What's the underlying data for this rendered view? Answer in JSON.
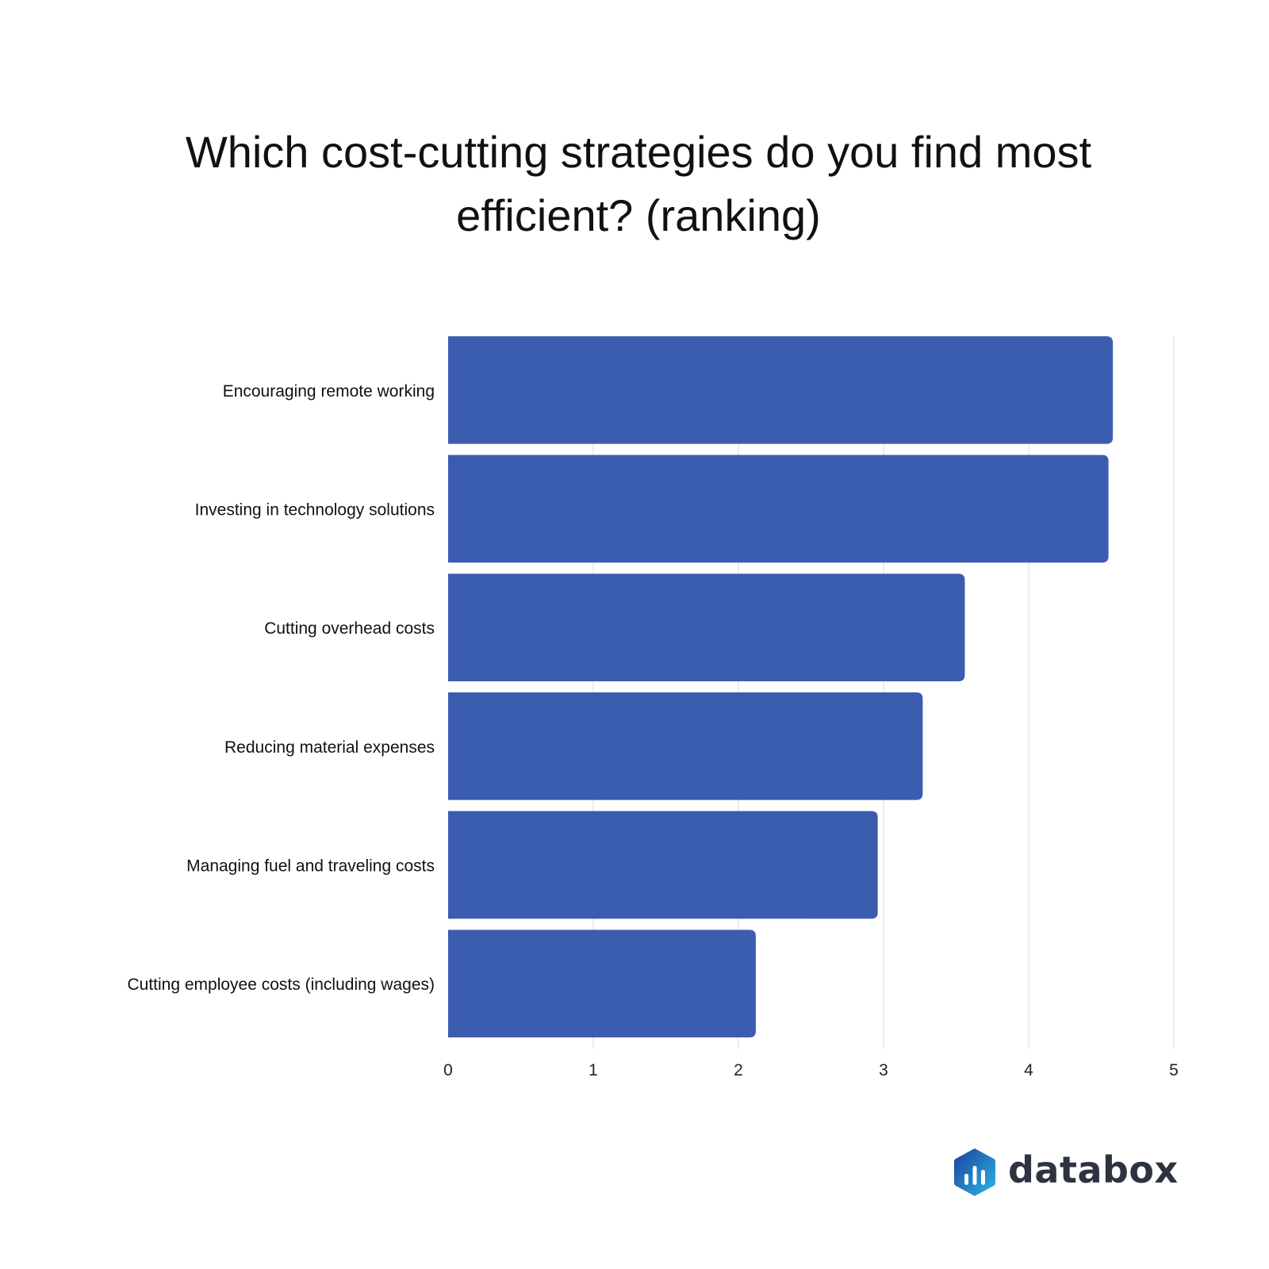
{
  "chart_data": {
    "type": "bar",
    "orientation": "horizontal",
    "title": "Which cost-cutting strategies do you find most efficient? (ranking)",
    "categories": [
      "Encouraging remote working",
      "Investing in technology solutions",
      "Cutting overhead costs",
      "Reducing material expenses",
      "Managing fuel and traveling costs",
      "Cutting employee costs (including wages)"
    ],
    "values": [
      4.58,
      4.55,
      3.56,
      3.27,
      2.96,
      2.12
    ],
    "xlim": [
      0,
      5
    ],
    "xticks": [
      "0",
      "1",
      "2",
      "3",
      "4",
      "5"
    ],
    "grid": true,
    "bar_color": "#3b5daf",
    "grid_color": "#d9d9d9"
  },
  "branding": {
    "logo_text": "databox",
    "logo_colors": [
      "#1e3f9a",
      "#2ab7e6"
    ]
  }
}
